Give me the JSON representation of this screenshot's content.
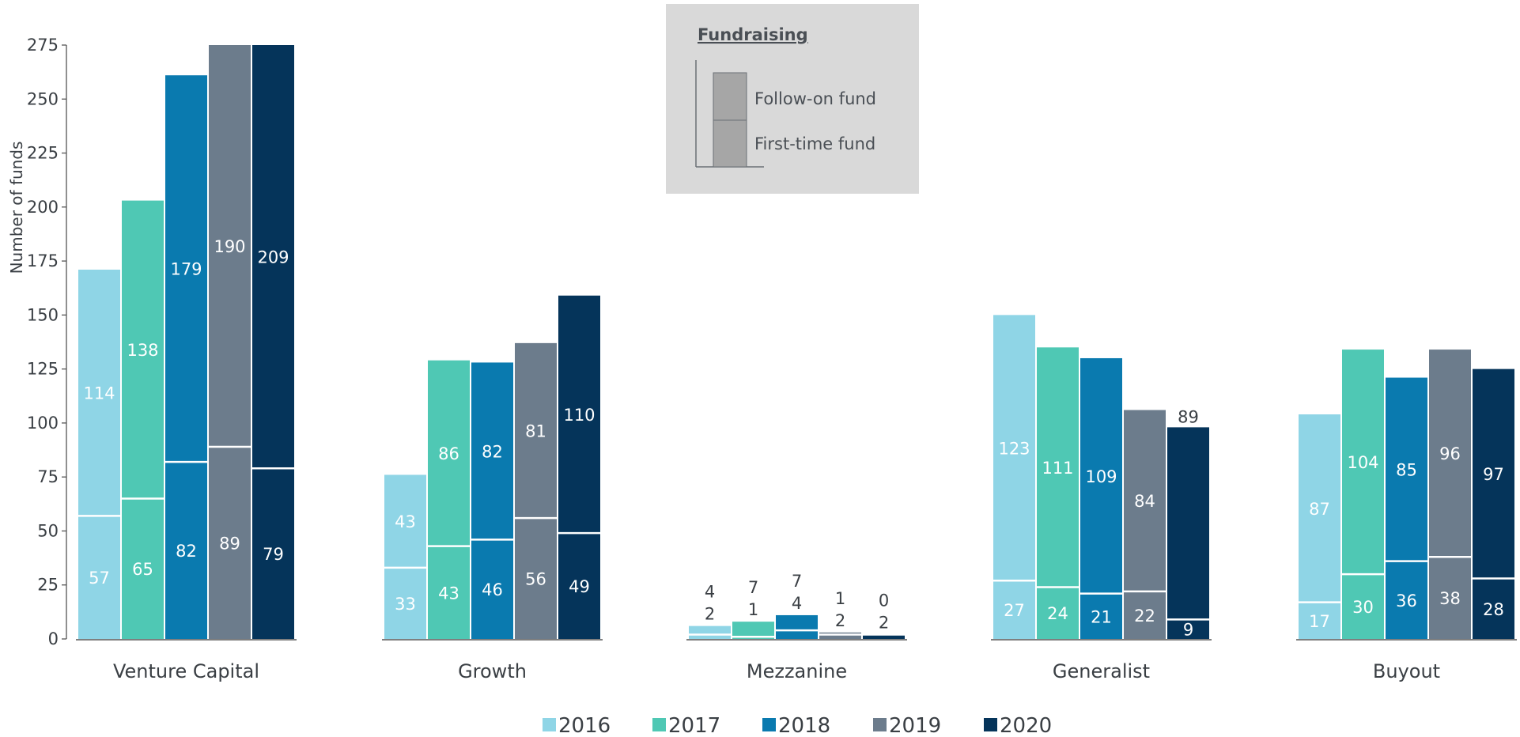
{
  "chart_data": {
    "type": "bar",
    "stacked": true,
    "ylabel": "Number of funds",
    "ylim": [
      0,
      275
    ],
    "yticks": [
      0,
      25,
      50,
      75,
      100,
      125,
      150,
      175,
      200,
      225,
      250,
      275
    ],
    "categories": [
      "Venture Capital",
      "Growth",
      "Mezzanine",
      "Generalist",
      "Buyout"
    ],
    "series": [
      {
        "name": "2016",
        "color": "#8fd5e6",
        "first_time": [
          57,
          33,
          2,
          27,
          17
        ],
        "follow_on": [
          114,
          43,
          4,
          123,
          87
        ]
      },
      {
        "name": "2017",
        "color": "#4fc8b4",
        "first_time": [
          65,
          43,
          1,
          24,
          30
        ],
        "follow_on": [
          138,
          86,
          7,
          111,
          104
        ]
      },
      {
        "name": "2018",
        "color": "#0a7aaf",
        "first_time": [
          82,
          46,
          4,
          21,
          36
        ],
        "follow_on": [
          179,
          82,
          7,
          109,
          85
        ]
      },
      {
        "name": "2019",
        "color": "#6c7c8c",
        "first_time": [
          89,
          56,
          2,
          22,
          38
        ],
        "follow_on": [
          190,
          81,
          1,
          84,
          96
        ]
      },
      {
        "name": "2020",
        "color": "#05345a",
        "first_time": [
          79,
          49,
          2,
          9,
          28
        ],
        "follow_on": [
          209,
          110,
          0,
          89,
          97
        ]
      }
    ],
    "grid": false,
    "legend_position": "bottom"
  },
  "panel": {
    "title": "Fundraising",
    "follow_on_label": "Follow-on fund",
    "first_time_label": "First-time fund",
    "bg_color": "#d9d9d9",
    "bar_color": "#a6a6a6"
  }
}
